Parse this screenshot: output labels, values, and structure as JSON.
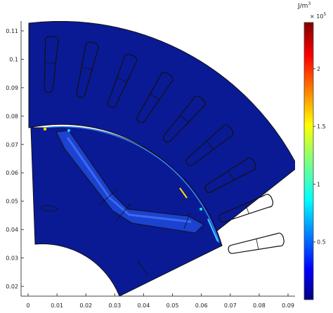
{
  "chart_data": {
    "type": "heatmap",
    "xlim": [
      0,
      0.09
    ],
    "ylim": [
      0.02,
      0.11
    ],
    "x_ticks": [
      "0",
      "0.01",
      "0.02",
      "0.03",
      "0.04",
      "0.05",
      "0.06",
      "0.07",
      "0.08",
      "0.09"
    ],
    "y_ticks": [
      "0.02",
      "0.03",
      "0.04",
      "0.05",
      "0.06",
      "0.07",
      "0.08",
      "0.09",
      "0.1",
      "0.11"
    ],
    "colorbar": {
      "unit": "J/m",
      "unit_exp": "3",
      "scale_base": "× 10",
      "scale_exp": "5",
      "ticks": [
        "0.5",
        "1",
        "1.5",
        "2"
      ],
      "range": [
        0,
        2.4
      ],
      "colormap": "jet"
    },
    "colors": {
      "background_field": "#0a1a94",
      "outline": "#111111",
      "hotspot": "#ffd400"
    }
  }
}
